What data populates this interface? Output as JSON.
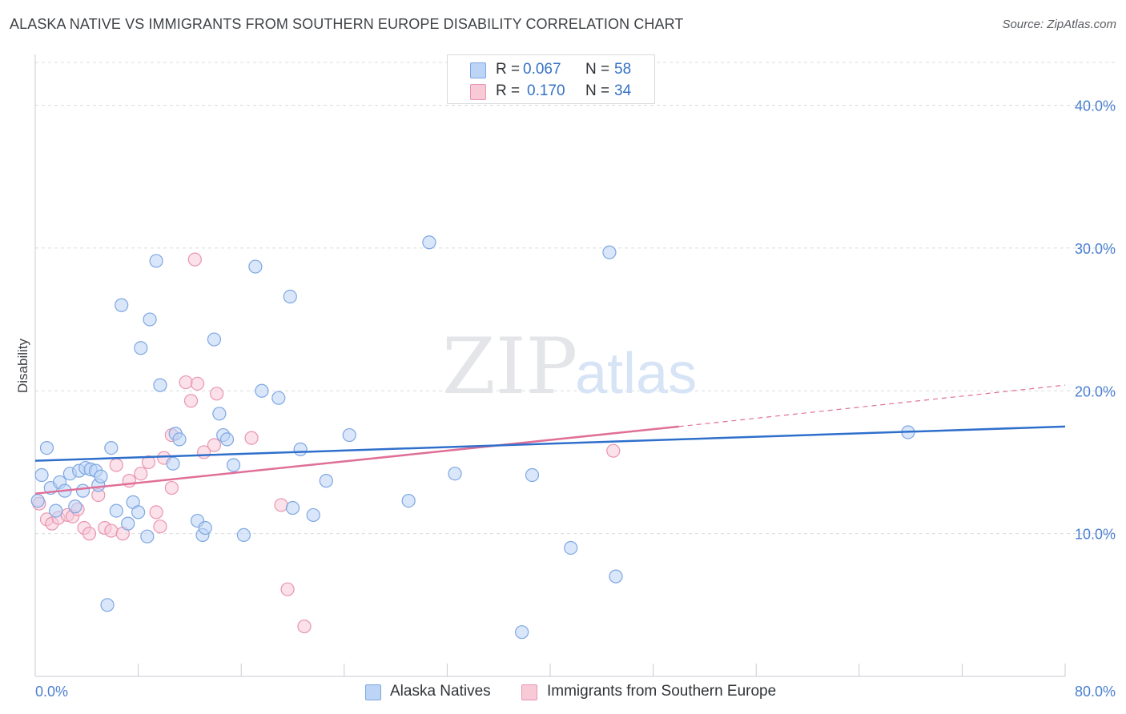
{
  "header": {
    "title": "ALASKA NATIVE VS IMMIGRANTS FROM SOUTHERN EUROPE DISABILITY CORRELATION CHART",
    "source": "Source: ZipAtlas.com"
  },
  "legend": {
    "blue": {
      "r_label": "R =",
      "r_value": "0.067",
      "n_label": "N =",
      "n_value": "58"
    },
    "pink": {
      "r_label": "R =",
      "r_value": "0.170",
      "n_label": "N =",
      "n_value": "34"
    }
  },
  "bottom_legend": {
    "blue": "Alaska Natives",
    "pink": "Immigrants from Southern Europe"
  },
  "colors": {
    "blue_fill": "#bcd4f5",
    "blue_stroke": "#7ea7e2",
    "blue_line": "#2f6fcc",
    "pink_fill": "#f8c9d7",
    "pink_stroke": "#e995b0",
    "pink_line": "#e06f98",
    "axis_text": "#4a7fd0",
    "grid": "#d9dbe0"
  },
  "watermark": {
    "zip": "ZIP",
    "atlas": "atlas"
  },
  "chart_data": {
    "type": "scatter",
    "title": "ALASKA NATIVE VS IMMIGRANTS FROM SOUTHERN EUROPE DISABILITY CORRELATION CHART",
    "xlabel": "",
    "ylabel": "Disability",
    "xlim": [
      0,
      80
    ],
    "ylim": [
      0,
      43
    ],
    "x_tick_labels": {
      "min": "0.0%",
      "max": "80.0%"
    },
    "y_ticks": [
      {
        "value": 10,
        "label": "10.0%"
      },
      {
        "value": 20,
        "label": "20.0%"
      },
      {
        "value": 30,
        "label": "30.0%"
      },
      {
        "value": 40,
        "label": "40.0%"
      }
    ],
    "series": [
      {
        "name": "Alaska Natives",
        "r": 0.067,
        "n": 58,
        "trend": {
          "x": [
            0,
            80
          ],
          "y": [
            15.1,
            17.5
          ]
        },
        "points": [
          [
            0.2,
            12.3
          ],
          [
            0.5,
            14.1
          ],
          [
            0.9,
            16.0
          ],
          [
            1.2,
            13.2
          ],
          [
            1.6,
            11.6
          ],
          [
            1.9,
            13.6
          ],
          [
            2.3,
            13.0
          ],
          [
            2.7,
            14.2
          ],
          [
            3.1,
            11.9
          ],
          [
            3.4,
            14.4
          ],
          [
            3.7,
            13.0
          ],
          [
            3.9,
            14.6
          ],
          [
            4.3,
            14.5
          ],
          [
            4.7,
            14.4
          ],
          [
            4.9,
            13.4
          ],
          [
            5.1,
            14.0
          ],
          [
            5.6,
            5.0
          ],
          [
            5.9,
            16.0
          ],
          [
            6.3,
            11.6
          ],
          [
            6.7,
            26.0
          ],
          [
            7.2,
            10.7
          ],
          [
            7.6,
            12.2
          ],
          [
            8.0,
            11.5
          ],
          [
            8.2,
            23.0
          ],
          [
            8.7,
            9.8
          ],
          [
            8.9,
            25.0
          ],
          [
            9.4,
            29.1
          ],
          [
            9.7,
            20.4
          ],
          [
            10.7,
            14.9
          ],
          [
            10.9,
            17.0
          ],
          [
            11.2,
            16.6
          ],
          [
            12.6,
            10.9
          ],
          [
            13.0,
            9.9
          ],
          [
            13.2,
            10.4
          ],
          [
            13.9,
            23.6
          ],
          [
            14.3,
            18.4
          ],
          [
            14.6,
            16.9
          ],
          [
            14.9,
            16.6
          ],
          [
            15.4,
            14.8
          ],
          [
            16.2,
            9.9
          ],
          [
            17.1,
            28.7
          ],
          [
            17.6,
            20.0
          ],
          [
            18.9,
            19.5
          ],
          [
            19.8,
            26.6
          ],
          [
            20.0,
            11.8
          ],
          [
            20.6,
            15.9
          ],
          [
            21.6,
            11.3
          ],
          [
            22.6,
            13.7
          ],
          [
            24.4,
            16.9
          ],
          [
            29.0,
            12.3
          ],
          [
            30.6,
            30.4
          ],
          [
            32.6,
            14.2
          ],
          [
            37.8,
            3.1
          ],
          [
            38.6,
            14.1
          ],
          [
            41.6,
            9.0
          ],
          [
            44.6,
            29.7
          ],
          [
            45.1,
            7.0
          ],
          [
            67.8,
            17.1
          ]
        ]
      },
      {
        "name": "Immigrants from Southern Europe",
        "r": 0.17,
        "n": 34,
        "trend": {
          "x": [
            0,
            50
          ],
          "y": [
            12.8,
            17.5
          ]
        },
        "trend_dashed": {
          "x": [
            50,
            80
          ],
          "y": [
            17.5,
            20.4
          ]
        },
        "points": [
          [
            0.3,
            12.1
          ],
          [
            0.9,
            11.0
          ],
          [
            1.3,
            10.7
          ],
          [
            1.8,
            11.1
          ],
          [
            2.5,
            11.3
          ],
          [
            2.9,
            11.2
          ],
          [
            3.3,
            11.7
          ],
          [
            3.8,
            10.4
          ],
          [
            4.2,
            10.0
          ],
          [
            4.9,
            12.7
          ],
          [
            5.4,
            10.4
          ],
          [
            5.9,
            10.2
          ],
          [
            6.3,
            14.8
          ],
          [
            6.8,
            10.0
          ],
          [
            7.3,
            13.7
          ],
          [
            8.2,
            14.2
          ],
          [
            8.8,
            15.0
          ],
          [
            9.4,
            11.5
          ],
          [
            9.7,
            10.5
          ],
          [
            10.0,
            15.3
          ],
          [
            10.6,
            13.2
          ],
          [
            10.6,
            16.9
          ],
          [
            11.7,
            20.6
          ],
          [
            12.1,
            19.3
          ],
          [
            12.4,
            29.2
          ],
          [
            12.6,
            20.5
          ],
          [
            13.1,
            15.7
          ],
          [
            13.9,
            16.2
          ],
          [
            14.1,
            19.8
          ],
          [
            16.8,
            16.7
          ],
          [
            19.1,
            12.0
          ],
          [
            19.6,
            6.1
          ],
          [
            20.9,
            3.5
          ],
          [
            44.9,
            15.8
          ]
        ]
      }
    ]
  }
}
